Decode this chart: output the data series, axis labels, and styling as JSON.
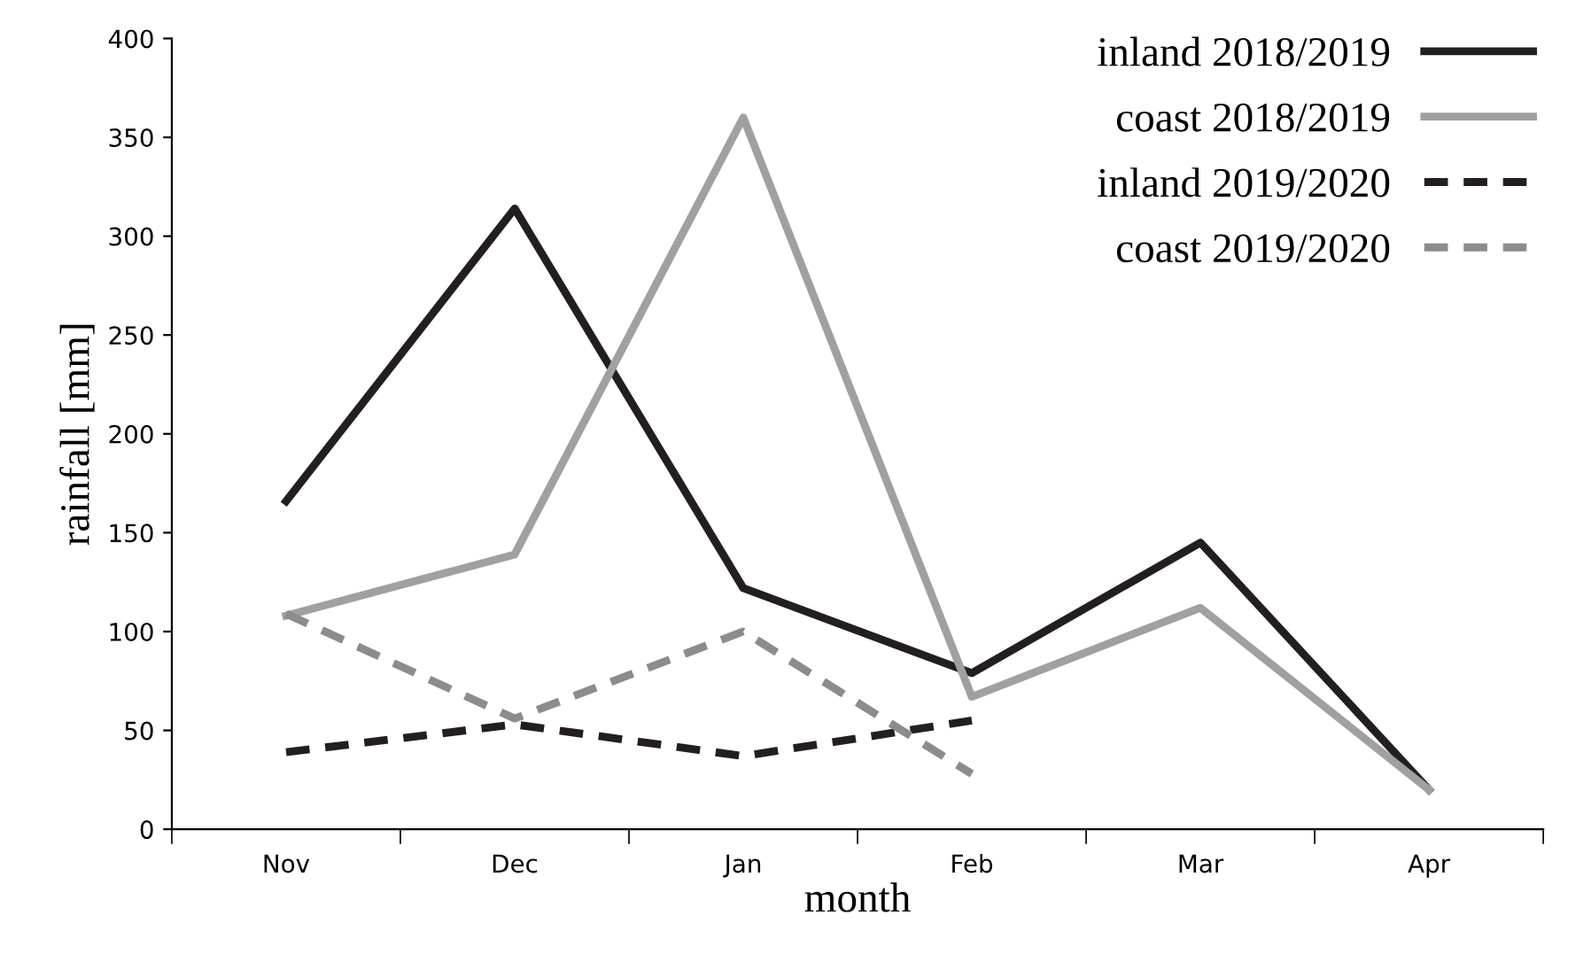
{
  "chart_data": {
    "type": "line",
    "xlabel": "month",
    "ylabel": "rainfall [mm]",
    "categories": [
      "Nov",
      "Dec",
      "Jan",
      "Feb",
      "Mar",
      "Apr"
    ],
    "series": [
      {
        "name": "inland 2018/2019",
        "color": "#231f20",
        "line_style": "solid",
        "values": [
          166,
          314,
          122,
          79,
          145,
          20
        ]
      },
      {
        "name": "coast 2018/2019",
        "color": "#a0a0a3",
        "line_style": "solid",
        "values": [
          108,
          139,
          360,
          67,
          112,
          20
        ]
      },
      {
        "name": "inland 2019/2020",
        "color": "#231f20",
        "line_style": "dashed",
        "values": [
          39,
          53,
          37,
          55,
          null,
          null
        ]
      },
      {
        "name": "coast 2019/2020",
        "color": "#8c8c8e",
        "line_style": "dashed",
        "values": [
          109,
          56,
          100,
          28,
          null,
          null
        ]
      }
    ],
    "ylim": [
      0,
      400
    ],
    "yticks": [
      0,
      50,
      100,
      150,
      200,
      250,
      300,
      350,
      400
    ],
    "grid": false,
    "legend": "top right",
    "marker": "none"
  }
}
